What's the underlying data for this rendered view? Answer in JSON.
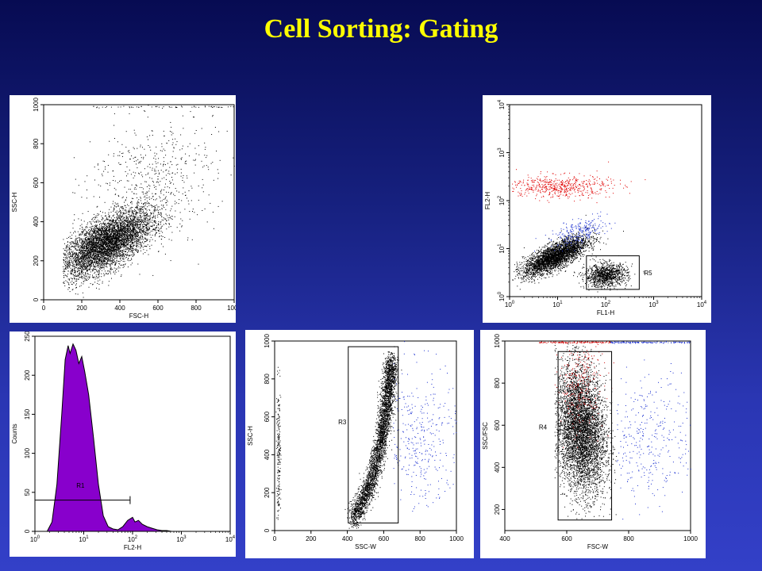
{
  "slide": {
    "title": "Cell Sorting: Gating"
  },
  "chart_data": [
    {
      "id": "p1",
      "type": "scatter",
      "xlabel": "FSC-H",
      "ylabel": "SSC-H",
      "xlim": [
        0,
        1000
      ],
      "ylim": [
        0,
        1000
      ],
      "xscale": "linear",
      "yscale": "linear",
      "xticks": [
        0,
        200,
        400,
        600,
        800,
        1000
      ],
      "yticks": [
        0,
        200,
        400,
        600,
        800,
        1000
      ],
      "series": [
        {
          "color": "#000000",
          "n": 5200,
          "center": [
            330,
            290
          ],
          "spread": [
            120,
            85
          ],
          "corr": 0.65,
          "xrange": [
            100,
            1000
          ],
          "yrange": [
            0,
            1000
          ]
        },
        {
          "color": "#000000",
          "n": 600,
          "center": [
            560,
            600
          ],
          "spread": [
            170,
            170
          ],
          "corr": 0.2,
          "xrange": [
            100,
            1000
          ],
          "yrange": [
            0,
            1000
          ]
        },
        {
          "color": "#000000",
          "n": 60,
          "line_y": 990,
          "xrange": [
            250,
            1000
          ]
        }
      ],
      "annotations": []
    },
    {
      "id": "p2",
      "type": "scatter",
      "xlabel": "FL1-H",
      "ylabel": "FL2-H",
      "xlim": [
        0,
        4
      ],
      "ylim": [
        0,
        4
      ],
      "xscale": "log",
      "yscale": "log",
      "xticks": [
        0,
        1,
        2,
        3,
        4
      ],
      "yticks": [
        0,
        1,
        2,
        3,
        4
      ],
      "series": [
        {
          "color": "#000000",
          "n": 3400,
          "center": [
            0.95,
            0.85
          ],
          "spread": [
            0.33,
            0.2
          ],
          "corr": 0.75,
          "xrange": [
            0.05,
            4
          ],
          "yrange": [
            0.05,
            4
          ]
        },
        {
          "color": "#000000",
          "n": 1100,
          "center": [
            2.0,
            0.45
          ],
          "spread": [
            0.22,
            0.12
          ],
          "corr": 0.1,
          "xrange": [
            0.05,
            4
          ],
          "yrange": [
            0.05,
            4
          ]
        },
        {
          "color": "#1a2fd0",
          "n": 250,
          "center": [
            1.45,
            1.35
          ],
          "spread": [
            0.3,
            0.15
          ],
          "corr": 0.6,
          "xrange": [
            0.05,
            4
          ],
          "yrange": [
            0.05,
            4
          ]
        },
        {
          "color": "#e00000",
          "n": 550,
          "center": [
            1.0,
            2.3
          ],
          "spread": [
            0.55,
            0.12
          ],
          "corr": 0.0,
          "xrange": [
            0.05,
            4
          ],
          "yrange": [
            0.05,
            4
          ]
        }
      ],
      "annotations": [
        {
          "kind": "rect",
          "label": "R5",
          "x": [
            1.6,
            2.7
          ],
          "y": [
            0.15,
            0.85
          ],
          "label_at": [
            2.8,
            0.45
          ]
        }
      ]
    },
    {
      "id": "p3",
      "type": "area",
      "xlabel": "FL2-H",
      "ylabel": "Counts",
      "xlim": [
        0,
        4
      ],
      "ylim": [
        0,
        250
      ],
      "xscale": "log",
      "yscale": "linear",
      "xticks": [
        0,
        1,
        2,
        3,
        4
      ],
      "yticks": [
        0,
        50,
        100,
        150,
        200,
        250
      ],
      "fill": "#8800cc",
      "x": [
        0.25,
        0.35,
        0.45,
        0.55,
        0.62,
        0.68,
        0.72,
        0.78,
        0.84,
        0.9,
        0.96,
        1.02,
        1.1,
        1.2,
        1.3,
        1.4,
        1.5,
        1.6,
        1.7,
        1.8,
        1.9,
        2.0,
        2.05,
        2.12,
        2.2,
        2.3,
        2.4,
        2.5,
        2.6,
        2.7,
        2.8,
        2.9,
        3.0
      ],
      "y": [
        0,
        12,
        60,
        150,
        220,
        238,
        228,
        240,
        232,
        215,
        224,
        205,
        175,
        120,
        60,
        20,
        6,
        3,
        2,
        6,
        14,
        18,
        12,
        14,
        9,
        6,
        4,
        2,
        1,
        1,
        0,
        0,
        0
      ],
      "annotations": [
        {
          "kind": "hbar",
          "label": "R1",
          "x": [
            0.0,
            1.95
          ],
          "y": 40,
          "label_at": [
            0.85,
            56
          ]
        }
      ]
    },
    {
      "id": "p4",
      "type": "scatter",
      "xlabel": "SSC-W",
      "ylabel": "SSC-H",
      "xlim": [
        0,
        1000
      ],
      "ylim": [
        0,
        1000
      ],
      "xscale": "linear",
      "yscale": "linear",
      "xticks": [
        0,
        200,
        400,
        600,
        800,
        1000
      ],
      "yticks": [
        0,
        200,
        400,
        600,
        800,
        1000
      ],
      "series": [
        {
          "color": "#000000",
          "n": 3600,
          "curve": [
            [
              430,
              60
            ],
            [
              530,
              250
            ],
            [
              590,
              500
            ],
            [
              620,
              700
            ],
            [
              640,
              900
            ]
          ],
          "jitter": [
            18,
            30
          ]
        },
        {
          "color": "#000000",
          "n": 200,
          "center": [
            20,
            400
          ],
          "spread": [
            6,
            180
          ],
          "corr": 0,
          "xrange": [
            5,
            40
          ],
          "yrange": [
            50,
            900
          ]
        },
        {
          "color": "#1a2fd0",
          "n": 420,
          "center": [
            790,
            480
          ],
          "spread": [
            120,
            200
          ],
          "corr": 0,
          "xrange": [
            650,
            1000
          ],
          "yrange": [
            100,
            1000
          ]
        }
      ],
      "annotations": [
        {
          "kind": "rect",
          "label": "R3",
          "x": [
            405,
            680
          ],
          "y": [
            40,
            970
          ],
          "label_at": [
            350,
            560
          ]
        }
      ]
    },
    {
      "id": "p5",
      "type": "scatter",
      "xlabel": "FSC-W",
      "ylabel": "SSC/FSC",
      "xlim": [
        400,
        1000
      ],
      "ylim": [
        100,
        1000
      ],
      "xscale": "linear",
      "yscale": "linear",
      "xticks": [
        400,
        600,
        800,
        1000
      ],
      "yticks": [
        200,
        400,
        600,
        800,
        1000
      ],
      "series": [
        {
          "color": "#000000",
          "n": 5200,
          "center": [
            645,
            580
          ],
          "spread": [
            40,
            150
          ],
          "corr": -0.2,
          "xrange": [
            560,
            760
          ],
          "yrange": [
            150,
            1000
          ]
        },
        {
          "color": "#cc0000",
          "n": 260,
          "center": [
            640,
            800
          ],
          "spread": [
            40,
            110
          ],
          "corr": 0,
          "xrange": [
            560,
            760
          ],
          "yrange": [
            400,
            1000
          ]
        },
        {
          "color": "#cc0000",
          "n": 120,
          "line_y": 995,
          "xrange": [
            510,
            740
          ]
        },
        {
          "color": "#1a2fd0",
          "n": 120,
          "line_y": 995,
          "xrange": [
            740,
            1000
          ]
        },
        {
          "color": "#1a2fd0",
          "n": 420,
          "center": [
            860,
            540
          ],
          "spread": [
            90,
            150
          ],
          "corr": 0,
          "xrange": [
            760,
            1000
          ],
          "yrange": [
            150,
            1000
          ]
        }
      ],
      "annotations": [
        {
          "kind": "rect",
          "label": "R4",
          "x": [
            572,
            745
          ],
          "y": [
            150,
            950
          ],
          "label_at": [
            510,
            580
          ]
        }
      ]
    }
  ]
}
